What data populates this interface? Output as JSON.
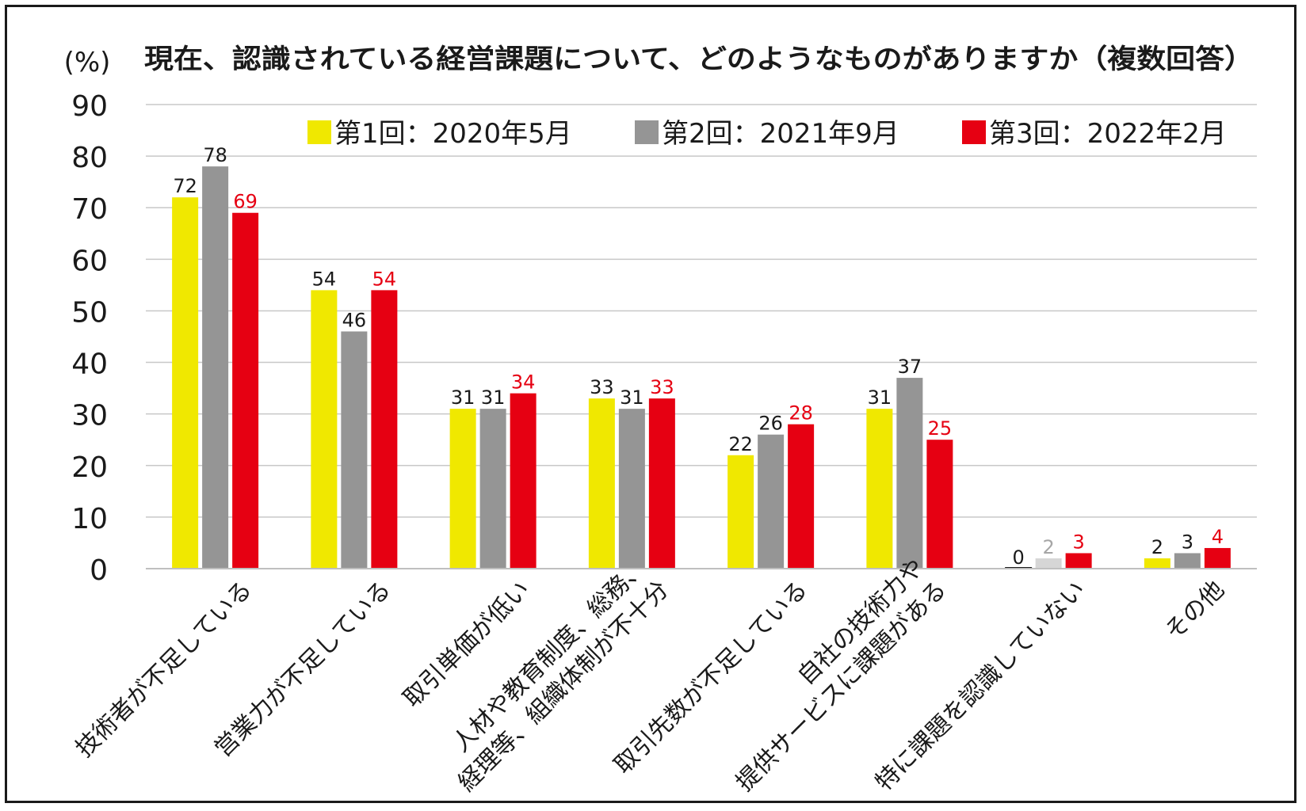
{
  "chart_data": {
    "type": "bar",
    "title": "現在、認識されている経営課題について、どのようなものがありますか（複数回答）",
    "ylabel": "(%)",
    "xlabel": "",
    "ylim": [
      0,
      90
    ],
    "yticks": [
      0,
      10,
      20,
      30,
      40,
      50,
      60,
      70,
      80,
      90
    ],
    "grid": true,
    "legend_position": "top-right",
    "categories": [
      [
        "技術者が不足している"
      ],
      [
        "営業力が不足している"
      ],
      [
        "取引単価が低い"
      ],
      [
        "人材や教育制度、総務、",
        "経理等、組織体制が不十分"
      ],
      [
        "取引先数が不足している"
      ],
      [
        "自社の技術力や",
        "提供サービスに課題がある"
      ],
      [
        "特に課題を認識していない"
      ],
      [
        "その他"
      ]
    ],
    "series": [
      {
        "name": "第1回：2020年5月",
        "color": "#f0e800",
        "label_color": "#1a1a1a",
        "values": [
          72,
          54,
          31,
          33,
          22,
          31,
          0,
          2
        ]
      },
      {
        "name": "第2回：2021年9月",
        "color": "#959595",
        "label_color": "#1a1a1a",
        "values": [
          78,
          46,
          31,
          31,
          26,
          37,
          2,
          3
        ]
      },
      {
        "name": "第3回：2022年2月",
        "color": "#e60012",
        "label_color": "#e60012",
        "values": [
          69,
          54,
          34,
          33,
          28,
          25,
          3,
          4
        ]
      }
    ],
    "special_bar_colors": [
      {
        "series": 1,
        "category": 6,
        "color": "#d6d6d6",
        "label_color": "#a6a6a6"
      }
    ]
  }
}
